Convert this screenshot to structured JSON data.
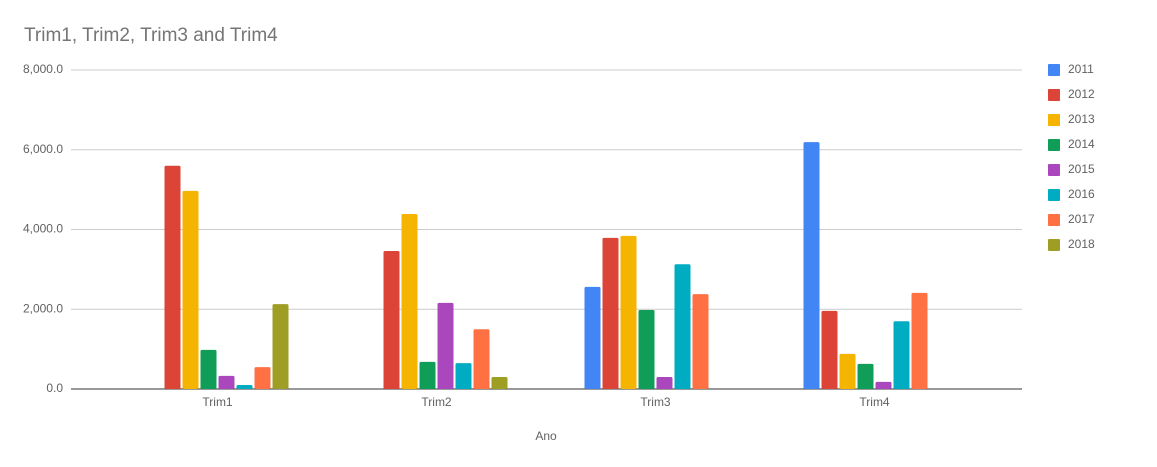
{
  "chart_data": {
    "type": "bar",
    "title": "Trim1, Trim2, Trim3 and Trim4",
    "x_label": "Ano",
    "categories": [
      "Trim1",
      "Trim2",
      "Trim3",
      "Trim4"
    ],
    "series": [
      {
        "name": "2011",
        "color": "#4285f4",
        "values": [
          null,
          null,
          2560,
          6190
        ]
      },
      {
        "name": "2012",
        "color": "#db4437",
        "values": [
          5600,
          3460,
          3790,
          1960
        ]
      },
      {
        "name": "2013",
        "color": "#f4b400",
        "values": [
          4970,
          4390,
          3840,
          880
        ]
      },
      {
        "name": "2014",
        "color": "#0f9d58",
        "values": [
          980,
          680,
          1980,
          630
        ]
      },
      {
        "name": "2015",
        "color": "#ab47bc",
        "values": [
          330,
          2160,
          300,
          180
        ]
      },
      {
        "name": "2016",
        "color": "#00acc1",
        "values": [
          100,
          650,
          3130,
          1700
        ]
      },
      {
        "name": "2017",
        "color": "#ff7043",
        "values": [
          550,
          1500,
          2380,
          2410
        ]
      },
      {
        "name": "2018",
        "color": "#9e9d24",
        "values": [
          2130,
          300,
          null,
          null
        ]
      }
    ],
    "ylim": [
      0,
      8000
    ],
    "yticks": [
      {
        "value": 0,
        "label": "0.0"
      },
      {
        "value": 2000,
        "label": "2,000.0"
      },
      {
        "value": 4000,
        "label": "4,000.0"
      },
      {
        "value": 6000,
        "label": "6,000.0"
      },
      {
        "value": 8000,
        "label": "8,000.0"
      }
    ],
    "grid": true,
    "legend": "right"
  }
}
